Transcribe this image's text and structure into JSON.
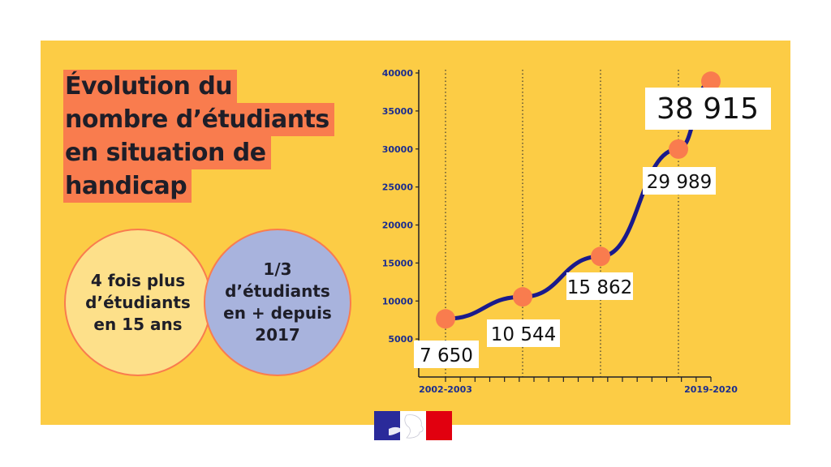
{
  "title_lines": [
    "Évolution du",
    "nombre d’étudiants",
    "en situation de",
    "handicap"
  ],
  "stat_a": "4 fois plus\nd’étudiants\nen 15 ans",
  "stat_b": "1/3\nd’étudiants\nen + depuis\n2017",
  "colors": {
    "background": "#fccc45",
    "highlight": "#f97c4e",
    "line": "#1a1a8c",
    "axis_text": "#1b2d8f",
    "circle_a": "#fde08a",
    "circle_b": "#a8b3dd"
  },
  "logo": {
    "icon": "marianne-flag-icon",
    "colors": [
      "#2a2a9a",
      "#ffffff",
      "#e1000f"
    ]
  },
  "chart_data": {
    "type": "line",
    "x_labels": [
      "2002-2003",
      "",
      "",
      "",
      "2019-2020"
    ],
    "values": [
      7650,
      10544,
      15862,
      29989,
      38915
    ],
    "value_labels": [
      "7 650",
      "10 544",
      "15 862",
      "29 989",
      "38 915"
    ],
    "yticks": [
      5000,
      10000,
      15000,
      20000,
      25000,
      30000,
      35000,
      40000
    ],
    "ylim": [
      0,
      40000
    ],
    "grid": "dotted vertical lines at data points",
    "x_minor_ticks": 18
  }
}
